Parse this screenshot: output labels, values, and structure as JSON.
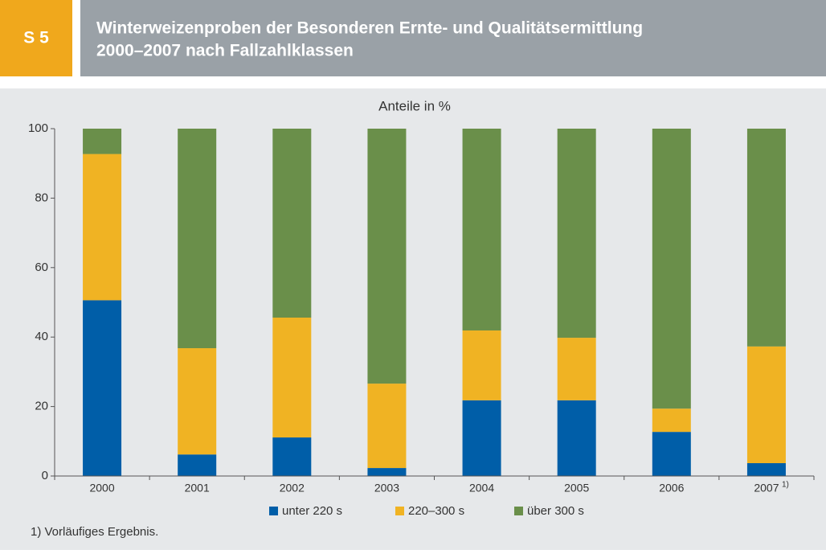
{
  "header": {
    "badge": "S 5",
    "title": [
      "Winterweizenproben der Besonderen Ernte- und Qualitätsermittlung",
      "2000–2007 nach Fallzahlklassen"
    ]
  },
  "chart_data": {
    "type": "stacked_bar",
    "title": "Anteile in %",
    "categories": [
      "2000",
      "2001",
      "2002",
      "2003",
      "2004",
      "2005",
      "2006",
      "2007"
    ],
    "category_notes": [
      null,
      null,
      null,
      null,
      null,
      null,
      null,
      "1)"
    ],
    "series": [
      {
        "name": "unter 220 s",
        "color": "#005ea8",
        "values": [
          50.6,
          6.2,
          11.1,
          2.3,
          21.8,
          21.8,
          12.7,
          3.7
        ]
      },
      {
        "name": "220–300 s",
        "color": "#f0b323",
        "values": [
          42.1,
          30.6,
          34.5,
          24.3,
          20.1,
          18.0,
          6.7,
          33.6
        ]
      },
      {
        "name": "über 300 s",
        "color": "#6a8f4a",
        "values": [
          7.3,
          63.2,
          54.4,
          73.4,
          58.1,
          60.2,
          80.6,
          62.7
        ]
      }
    ],
    "ylim": [
      0,
      100
    ],
    "yticks": [
      0,
      20,
      40,
      60,
      80,
      100
    ],
    "legend": "bottom"
  },
  "footnote": "1) Vorläufiges Ergebnis."
}
